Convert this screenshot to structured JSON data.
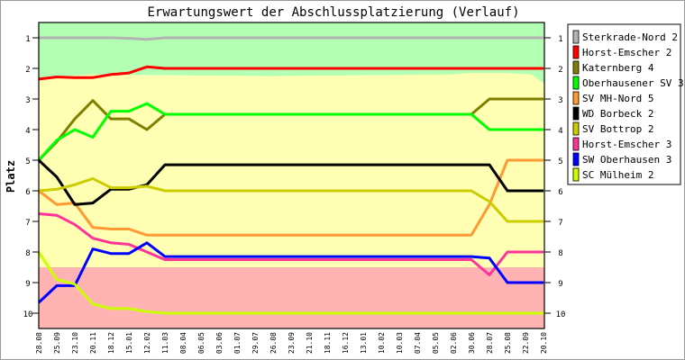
{
  "chart_data": {
    "type": "line",
    "title": "Erwartungswert der Abschlussplatzierung (Verlauf)",
    "xlabel": "",
    "ylabel": "Platz",
    "ylim": [
      1,
      10
    ],
    "y_inverted": true,
    "yticks": [
      "1",
      "2",
      "3",
      "4",
      "5",
      "6",
      "7",
      "8",
      "9",
      "10"
    ],
    "categories": [
      "28.08",
      "25.09",
      "23.10",
      "20.11",
      "18.12",
      "15.01",
      "12.02",
      "11.03",
      "08.04",
      "06.05",
      "03.06",
      "01.07",
      "29.07",
      "26.08",
      "23.09",
      "21.10",
      "18.11",
      "16.12",
      "13.01",
      "10.02",
      "10.03",
      "07.04",
      "05.05",
      "02.06",
      "30.06",
      "28.07",
      "25.08",
      "22.09",
      "20.10"
    ],
    "legend_position": "right",
    "bands": [
      {
        "from": 1,
        "to": 2.2,
        "color": "#b3ffb3"
      },
      {
        "from": 2.2,
        "to": 8.5,
        "color": "#ffffb3"
      },
      {
        "from": 8.5,
        "to": 10.5,
        "color": "#ffb3b3"
      }
    ],
    "series": [
      {
        "name": "Sterkrade-Nord 2",
        "color": "#b3b3b3",
        "values": [
          1,
          1,
          1,
          1,
          1,
          1.02,
          1.05,
          1,
          1,
          1,
          1,
          1,
          1,
          1,
          1,
          1,
          1,
          1,
          1,
          1,
          1,
          1,
          1,
          1,
          1,
          1,
          1,
          1,
          1
        ]
      },
      {
        "name": "Horst-Emscher 2",
        "color": "#ff0000",
        "values": [
          2.35,
          2.28,
          2.3,
          2.3,
          2.2,
          2.15,
          1.95,
          2,
          2,
          2,
          2,
          2,
          2,
          2,
          2,
          2,
          2,
          2,
          2,
          2,
          2,
          2,
          2,
          2,
          2,
          2,
          2,
          2,
          2
        ]
      },
      {
        "name": "Katernberg 4",
        "color": "#808000",
        "values": [
          5,
          4.4,
          3.65,
          3.05,
          3.65,
          3.65,
          4.0,
          3.5,
          3.5,
          3.5,
          3.5,
          3.5,
          3.5,
          3.5,
          3.5,
          3.5,
          3.5,
          3.5,
          3.5,
          3.5,
          3.5,
          3.5,
          3.5,
          3.5,
          3.5,
          3.0,
          3,
          3,
          3
        ]
      },
      {
        "name": "Oberhausener SV 3",
        "color": "#00ff00",
        "values": [
          5,
          4.35,
          4.0,
          4.25,
          3.4,
          3.4,
          3.15,
          3.5,
          3.5,
          3.5,
          3.5,
          3.5,
          3.5,
          3.5,
          3.5,
          3.5,
          3.5,
          3.5,
          3.5,
          3.5,
          3.5,
          3.5,
          3.5,
          3.5,
          3.5,
          4.0,
          4,
          4,
          4
        ]
      },
      {
        "name": "SV MH-Nord 5",
        "color": "#ff9933",
        "values": [
          6,
          6.45,
          6.4,
          7.2,
          7.25,
          7.25,
          7.45,
          7.45,
          7.45,
          7.45,
          7.45,
          7.45,
          7.45,
          7.45,
          7.45,
          7.45,
          7.45,
          7.45,
          7.45,
          7.45,
          7.45,
          7.45,
          7.45,
          7.45,
          7.45,
          6.45,
          5,
          5,
          5
        ]
      },
      {
        "name": "WD Borbeck 2",
        "color": "#000000",
        "values": [
          5,
          5.55,
          6.45,
          6.4,
          5.95,
          5.95,
          5.8,
          5.15,
          5.15,
          5.15,
          5.15,
          5.15,
          5.15,
          5.15,
          5.15,
          5.15,
          5.15,
          5.15,
          5.15,
          5.15,
          5.15,
          5.15,
          5.15,
          5.15,
          5.15,
          5.15,
          6,
          6,
          6
        ]
      },
      {
        "name": "SV Bottrop 2",
        "color": "#cccc00",
        "values": [
          6,
          5.95,
          5.8,
          5.6,
          5.9,
          5.9,
          5.85,
          6,
          6,
          6,
          6,
          6,
          6,
          6,
          6,
          6,
          6,
          6,
          6,
          6,
          6,
          6,
          6,
          6,
          6,
          6.35,
          7,
          7,
          7
        ]
      },
      {
        "name": "Horst-Emscher 3",
        "color": "#ff3399",
        "values": [
          6.75,
          6.8,
          7.1,
          7.55,
          7.7,
          7.75,
          8.0,
          8.25,
          8.25,
          8.25,
          8.25,
          8.25,
          8.25,
          8.25,
          8.25,
          8.25,
          8.25,
          8.25,
          8.25,
          8.25,
          8.25,
          8.25,
          8.25,
          8.25,
          8.25,
          8.75,
          8,
          8,
          8
        ]
      },
      {
        "name": "SW Oberhausen 3",
        "color": "#0000ff",
        "values": [
          9.65,
          9.1,
          9.1,
          7.9,
          8.05,
          8.05,
          7.7,
          8.15,
          8.15,
          8.15,
          8.15,
          8.15,
          8.15,
          8.15,
          8.15,
          8.15,
          8.15,
          8.15,
          8.15,
          8.15,
          8.15,
          8.15,
          8.15,
          8.15,
          8.15,
          8.2,
          9,
          9,
          9
        ]
      },
      {
        "name": "SC Mülheim 2",
        "color": "#ccff00",
        "values": [
          8,
          8.9,
          9.05,
          9.7,
          9.85,
          9.85,
          9.95,
          10,
          10,
          10,
          10,
          10,
          10,
          10,
          10,
          10,
          10,
          10,
          10,
          10,
          10,
          10,
          10,
          10,
          10,
          10,
          10,
          10,
          10
        ]
      }
    ]
  }
}
